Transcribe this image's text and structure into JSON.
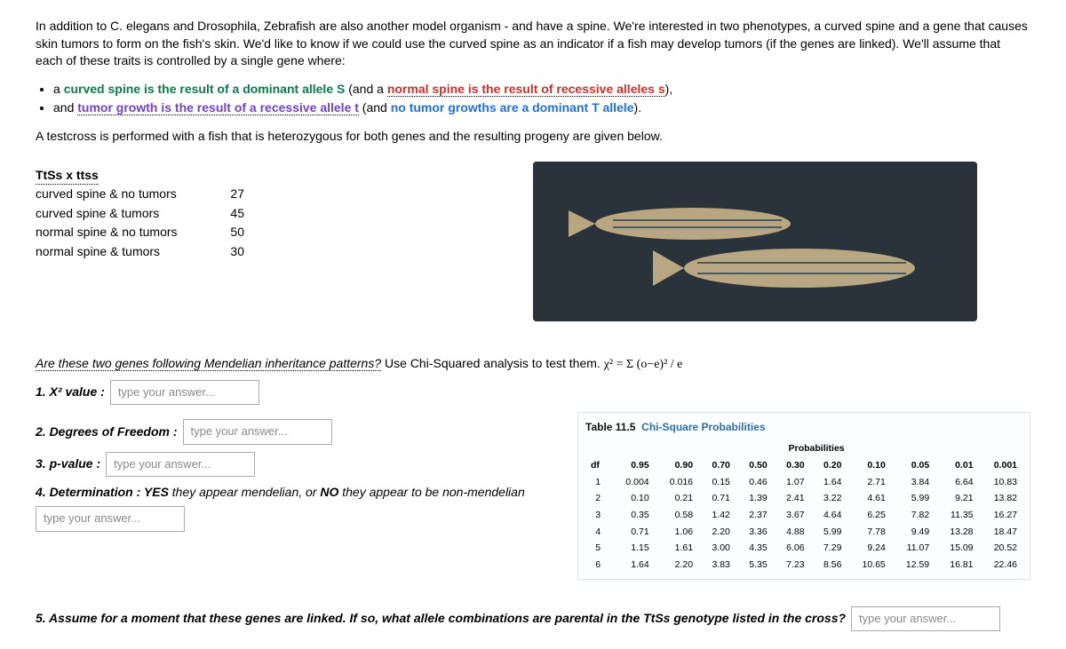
{
  "intro": {
    "p1": "In addition to C. elegans and Drosophila, Zebrafish are also another model organism - and have a spine. We're interested in two phenotypes, a curved spine and a gene that causes skin tumors to form on the fish's skin. We'd like to know if we could use the curved spine as an indicator if a fish may develop tumors (if the genes are linked). We'll assume that each of these traits is controlled by a single gene where:",
    "bullet1_a": "a ",
    "bullet1_b": "curved spine is the result of a dominant allele S",
    "bullet1_c": " (and a ",
    "bullet1_d": "normal spine is the result of recessive alleles s",
    "bullet1_e": "),",
    "bullet2_a": "and ",
    "bullet2_b": "tumor growth is the result of a recessive allele t",
    "bullet2_c": " (and ",
    "bullet2_d": "no tumor growths are a dominant T allele",
    "bullet2_e": ").",
    "testcross": "A testcross is performed with a fish that is heterozygous for both genes  and the resulting progeny are given below."
  },
  "progeny": {
    "header": "TtSs x ttss",
    "rows": [
      {
        "label": "curved spine & no tumors",
        "value": "27"
      },
      {
        "label": "curved spine & tumors",
        "value": "45"
      },
      {
        "label": "normal spine & no tumors",
        "value": "50"
      },
      {
        "label": "normal spine & tumors",
        "value": "30"
      }
    ]
  },
  "question": {
    "lead": "Are these two genes following Mendelian inheritance patterns?",
    "rest": " Use Chi-Squared analysis to test them. ",
    "formula": "χ² = Σ (o−e)² / e"
  },
  "answers": {
    "q1_label": "1. X² value :",
    "q2_label": "2. Degrees of Freedom :",
    "q3_label": "3. p-value :",
    "q4_label_a": "4. Determination : ",
    "q4_label_b": "YES",
    "q4_label_c": " they appear mendelian, or ",
    "q4_label_d": "NO",
    "q4_label_e": " they appear to be non-mendelian",
    "placeholder": "type your answer...",
    "q5_a": "5. Assume for a moment that these genes are linked. If so, what allele combinations are parental in the TtSs genotype listed in the cross?"
  },
  "chi": {
    "title_a": "Table 11.5",
    "title_b": "Chi-Square Probabilities",
    "prob_label": "Probabilities",
    "df_label": "df",
    "p_headers": [
      "0.95",
      "0.90",
      "0.70",
      "0.50",
      "0.30",
      "0.20",
      "0.10",
      "0.05",
      "0.01",
      "0.001"
    ],
    "rows": [
      {
        "df": "1",
        "v": [
          "0.004",
          "0.016",
          "0.15",
          "0.46",
          "1.07",
          "1.64",
          "2.71",
          "3.84",
          "6.64",
          "10.83"
        ]
      },
      {
        "df": "2",
        "v": [
          "0.10",
          "0.21",
          "0.71",
          "1.39",
          "2.41",
          "3.22",
          "4.61",
          "5.99",
          "9.21",
          "13.82"
        ]
      },
      {
        "df": "3",
        "v": [
          "0.35",
          "0.58",
          "1.42",
          "2.37",
          "3.67",
          "4.64",
          "6.25",
          "7.82",
          "11.35",
          "16.27"
        ]
      },
      {
        "df": "4",
        "v": [
          "0.71",
          "1.06",
          "2.20",
          "3.36",
          "4.88",
          "5.99",
          "7.78",
          "9.49",
          "13.28",
          "18.47"
        ]
      },
      {
        "df": "5",
        "v": [
          "1.15",
          "1.61",
          "3.00",
          "4.35",
          "6.06",
          "7.29",
          "9.24",
          "11.07",
          "15.09",
          "20.52"
        ]
      },
      {
        "df": "6",
        "v": [
          "1.64",
          "2.20",
          "3.83",
          "5.35",
          "7.23",
          "8.56",
          "10.65",
          "12.59",
          "16.81",
          "22.46"
        ]
      }
    ]
  },
  "colors": {
    "green": "#0a7a4a",
    "red": "#c9302c",
    "purple": "#6f42c1",
    "blue": "#1e6fd9",
    "box_border": "#aaa",
    "placeholder": "#888",
    "chi_border": "#d9e0e6"
  }
}
